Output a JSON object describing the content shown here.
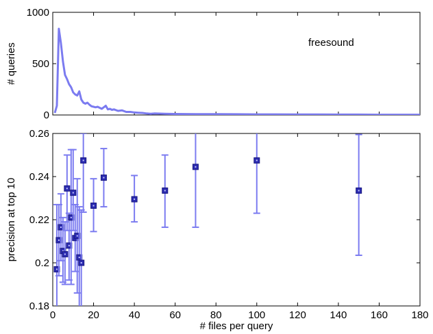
{
  "chart_data": [
    {
      "type": "line",
      "annotation": "freesound",
      "xlabel": "",
      "ylabel": "# queries",
      "xlim": [
        0,
        180
      ],
      "ylim": [
        0,
        1000
      ],
      "yticks": [
        0,
        500,
        1000
      ],
      "series_color": "#7b7bf0",
      "x": [
        1,
        2,
        3,
        4,
        5,
        6,
        7,
        8,
        9,
        10,
        11,
        12,
        13,
        14,
        15,
        16,
        17,
        18,
        19,
        20,
        21,
        22,
        23,
        24,
        25,
        26,
        27,
        28,
        29,
        30,
        32,
        34,
        36,
        38,
        40,
        42,
        44,
        46,
        48,
        50,
        55,
        60,
        70,
        80,
        90,
        100,
        110,
        120,
        130,
        140,
        150,
        160,
        170,
        180
      ],
      "y": [
        20,
        90,
        840,
        700,
        520,
        390,
        350,
        300,
        270,
        220,
        200,
        190,
        230,
        150,
        120,
        110,
        120,
        100,
        85,
        80,
        75,
        80,
        70,
        60,
        75,
        90,
        55,
        60,
        50,
        55,
        40,
        45,
        30,
        30,
        25,
        22,
        20,
        15,
        12,
        15,
        12,
        10,
        8,
        8,
        7,
        6,
        6,
        5,
        5,
        4,
        4,
        3,
        3,
        3
      ]
    },
    {
      "type": "scatter",
      "xlabel": "# files per query",
      "ylabel": "precision at top 10",
      "xlim": [
        0,
        180
      ],
      "ylim": [
        0.18,
        0.26
      ],
      "xticks": [
        0,
        20,
        40,
        60,
        80,
        100,
        120,
        140,
        160,
        180
      ],
      "yticks": [
        "0.18",
        "0.2",
        "0.22",
        "0.24",
        "0.26"
      ],
      "marker_color": "#2b2bb0",
      "errorbar_color": "#7b7bf0",
      "points": [
        {
          "x": 2,
          "y": 0.197,
          "lo": 0.174,
          "hi": 0.227
        },
        {
          "x": 3,
          "y": 0.2105,
          "lo": 0.194,
          "hi": 0.227
        },
        {
          "x": 4,
          "y": 0.2165,
          "lo": 0.201,
          "hi": 0.232
        },
        {
          "x": 5,
          "y": 0.2055,
          "lo": 0.191,
          "hi": 0.221
        },
        {
          "x": 6,
          "y": 0.204,
          "lo": 0.19,
          "hi": 0.219
        },
        {
          "x": 7,
          "y": 0.2345,
          "lo": 0.215,
          "hi": 0.25
        },
        {
          "x": 8,
          "y": 0.208,
          "lo": 0.192,
          "hi": 0.223
        },
        {
          "x": 9,
          "y": 0.221,
          "lo": 0.19,
          "hi": 0.2525
        },
        {
          "x": 10,
          "y": 0.2325,
          "lo": 0.215,
          "hi": 0.2525
        },
        {
          "x": 11,
          "y": 0.2115,
          "lo": 0.196,
          "hi": 0.227
        },
        {
          "x": 12,
          "y": 0.2125,
          "lo": 0.186,
          "hi": 0.239
        },
        {
          "x": 13,
          "y": 0.2025,
          "lo": 0.171,
          "hi": 0.226
        },
        {
          "x": 14,
          "y": 0.2,
          "lo": 0.17,
          "hi": 0.2245
        },
        {
          "x": 15,
          "y": 0.2475,
          "lo": 0.2235,
          "hi": 0.26
        },
        {
          "x": 20,
          "y": 0.2265,
          "lo": 0.2145,
          "hi": 0.239
        },
        {
          "x": 25,
          "y": 0.2395,
          "lo": 0.226,
          "hi": 0.253
        },
        {
          "x": 40,
          "y": 0.2295,
          "lo": 0.219,
          "hi": 0.2405
        },
        {
          "x": 55,
          "y": 0.2335,
          "lo": 0.2165,
          "hi": 0.25
        },
        {
          "x": 70,
          "y": 0.2445,
          "lo": 0.2165,
          "hi": 0.2735
        },
        {
          "x": 100,
          "y": 0.2475,
          "lo": 0.223,
          "hi": 0.2605
        },
        {
          "x": 150,
          "y": 0.2335,
          "lo": 0.2035,
          "hi": 0.2595
        }
      ]
    }
  ]
}
